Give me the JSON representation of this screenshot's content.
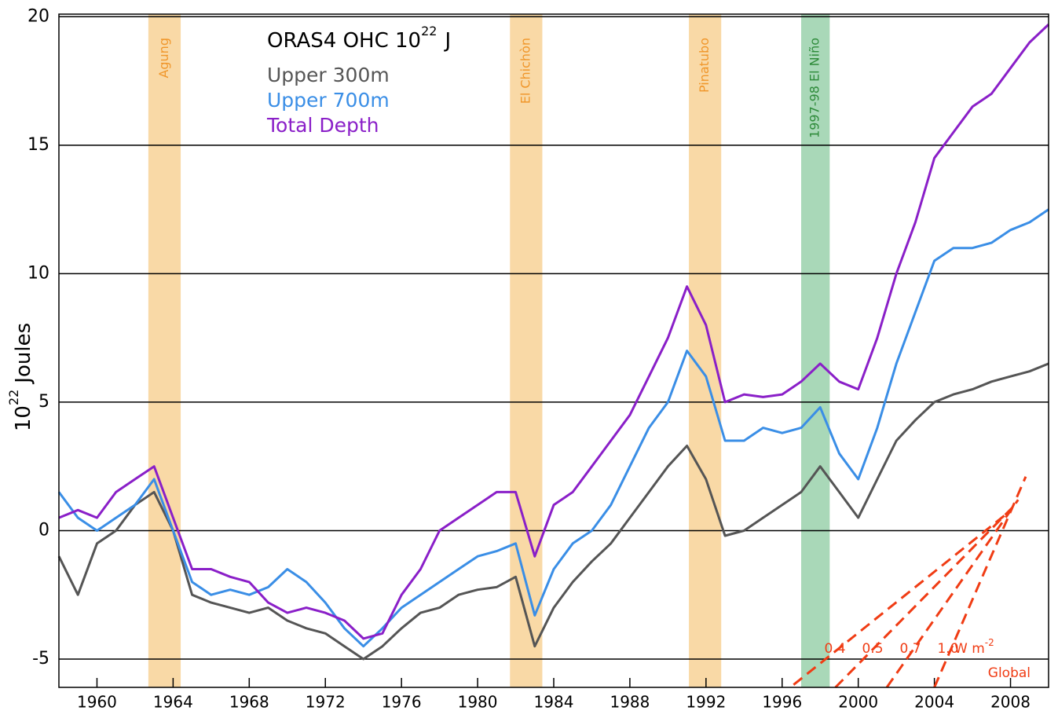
{
  "chart_data": {
    "type": "line",
    "legend_title": "ORAS4  OHC  10",
    "legend_title_exponent": "22",
    "legend_title_unit": "J",
    "y_label": "10",
    "y_label_exponent": "22",
    "y_label_unit": "Joules",
    "x": [
      1958,
      1959,
      1960,
      1961,
      1962,
      1963,
      1964,
      1965,
      1966,
      1967,
      1968,
      1969,
      1970,
      1971,
      1972,
      1973,
      1974,
      1975,
      1976,
      1977,
      1978,
      1979,
      1980,
      1981,
      1982,
      1983,
      1984,
      1985,
      1986,
      1987,
      1988,
      1989,
      1990,
      1991,
      1992,
      1993,
      1994,
      1995,
      1996,
      1997,
      1998,
      1999,
      2000,
      2001,
      2002,
      2003,
      2004,
      2005,
      2006,
      2007,
      2008,
      2009,
      2010
    ],
    "series": [
      {
        "name": "Upper 300m",
        "color": "#555555",
        "values": [
          -1.0,
          -2.5,
          -0.5,
          0.0,
          1.0,
          1.5,
          0.0,
          -2.5,
          -2.8,
          -3.0,
          -3.2,
          -3.0,
          -3.5,
          -3.8,
          -4.0,
          -4.5,
          -5.0,
          -4.5,
          -3.8,
          -3.2,
          -3.0,
          -2.5,
          -2.3,
          -2.2,
          -1.8,
          -4.5,
          -3.0,
          -2.0,
          -1.2,
          -0.5,
          0.5,
          1.5,
          2.5,
          3.3,
          2.0,
          -0.2,
          0.0,
          0.5,
          1.0,
          1.5,
          2.5,
          1.5,
          0.5,
          2.0,
          3.5,
          4.3,
          5.0,
          5.3,
          5.5,
          5.8,
          6.0,
          6.2,
          6.5
        ]
      },
      {
        "name": "Upper 700m",
        "color": "#3a8ee6",
        "values": [
          1.5,
          0.5,
          0.0,
          0.5,
          1.0,
          2.0,
          0.0,
          -2.0,
          -2.5,
          -2.3,
          -2.5,
          -2.2,
          -1.5,
          -2.0,
          -2.8,
          -3.8,
          -4.5,
          -3.8,
          -3.0,
          -2.5,
          -2.0,
          -1.5,
          -1.0,
          -0.8,
          -0.5,
          -3.3,
          -1.5,
          -0.5,
          0.0,
          1.0,
          2.5,
          4.0,
          5.0,
          7.0,
          6.0,
          3.5,
          3.5,
          4.0,
          3.8,
          4.0,
          4.8,
          3.0,
          2.0,
          4.0,
          6.5,
          8.5,
          10.5,
          11.0,
          11.0,
          11.2,
          11.7,
          12.0,
          12.5
        ]
      },
      {
        "name": "Total Depth",
        "color": "#8a1fc8",
        "values": [
          0.5,
          0.8,
          0.5,
          1.5,
          2.0,
          2.5,
          0.5,
          -1.5,
          -1.5,
          -1.8,
          -2.0,
          -2.8,
          -3.2,
          -3.0,
          -3.2,
          -3.5,
          -4.2,
          -4.0,
          -2.5,
          -1.5,
          0.0,
          0.5,
          1.0,
          1.5,
          1.5,
          -1.0,
          1.0,
          1.5,
          2.5,
          3.5,
          4.5,
          6.0,
          7.5,
          9.5,
          8.0,
          5.0,
          5.3,
          5.2,
          5.3,
          5.8,
          6.5,
          5.8,
          5.5,
          7.5,
          10.0,
          12.0,
          14.5,
          15.5,
          16.5,
          17.0,
          18.0,
          19.0,
          19.7
        ]
      }
    ],
    "events": [
      {
        "label": "Agung",
        "start": 1962.7,
        "end": 1964.4,
        "color": "#f9d9a6",
        "label_color": "#f0962a"
      },
      {
        "label": "El Chichòn",
        "start": 1981.7,
        "end": 1983.4,
        "color": "#f9d9a6",
        "label_color": "#f0962a"
      },
      {
        "label": "Pinatubo",
        "start": 1991.1,
        "end": 1992.8,
        "color": "#f9d9a6",
        "label_color": "#f0962a"
      },
      {
        "label": "1997-98 El Niño",
        "start": 1997.0,
        "end": 1998.5,
        "color": "#a9d8b8",
        "label_color": "#2e8b3a"
      }
    ],
    "reference_lines": [
      {
        "label": "0.4",
        "start": [
          1996.6,
          -6.0
        ],
        "end": [
          2007.7,
          0.6
        ]
      },
      {
        "label": "0.5",
        "start": [
          1998.8,
          -6.1
        ],
        "end": [
          2008.1,
          0.9
        ]
      },
      {
        "label": "0.7",
        "start": [
          2001.5,
          -6.1
        ],
        "end": [
          2008.4,
          1.2
        ]
      },
      {
        "label": "1.0",
        "start": [
          2004.0,
          -6.1
        ],
        "end": [
          2008.8,
          2.1
        ]
      }
    ],
    "reference_unit": "W m",
    "reference_unit_exponent": "-2",
    "reference_note": "Global",
    "reference_color": "#f03c14",
    "xlim": [
      1958,
      2010
    ],
    "ylim": [
      -6.1,
      20.1
    ],
    "xticks": [
      1960,
      1964,
      1968,
      1972,
      1976,
      1980,
      1984,
      1988,
      1992,
      1996,
      2000,
      2004,
      2008
    ],
    "yticks": [
      -5,
      0,
      5,
      10,
      15,
      20
    ],
    "grid": true
  }
}
